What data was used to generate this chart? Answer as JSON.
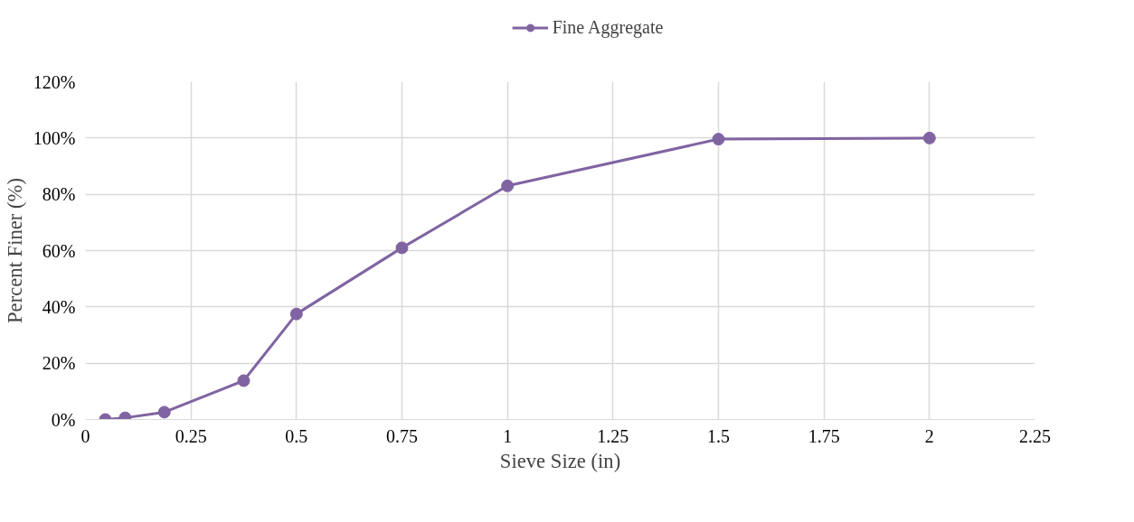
{
  "chart_data": {
    "type": "line",
    "xlabel": "Sieve Size (in)",
    "ylabel": "Percent Finer (%)",
    "x": [
      0.047,
      0.094,
      0.187,
      0.375,
      0.5,
      0.75,
      1,
      1.5,
      2
    ],
    "series": [
      {
        "name": "Fine Aggregate",
        "color": "#8064a2",
        "values": [
          0,
          0.6,
          2.6,
          13.8,
          37.5,
          61,
          83,
          99.6,
          100
        ]
      }
    ],
    "xlim": [
      0,
      2.25
    ],
    "xticks": [
      0,
      0.25,
      0.5,
      0.75,
      1,
      1.25,
      1.5,
      1.75,
      2,
      2.25
    ],
    "ylim": [
      0,
      120
    ],
    "yticks": [
      {
        "value": 0,
        "label": "0%"
      },
      {
        "value": 20,
        "label": "20%"
      },
      {
        "value": 40,
        "label": "40%"
      },
      {
        "value": 60,
        "label": "60%"
      },
      {
        "value": 80,
        "label": "80%"
      },
      {
        "value": 100,
        "label": "100%"
      },
      {
        "value": 120,
        "label": "120%"
      }
    ],
    "grid": true,
    "legend": "top",
    "marker": "circle",
    "line_style": "solid"
  }
}
